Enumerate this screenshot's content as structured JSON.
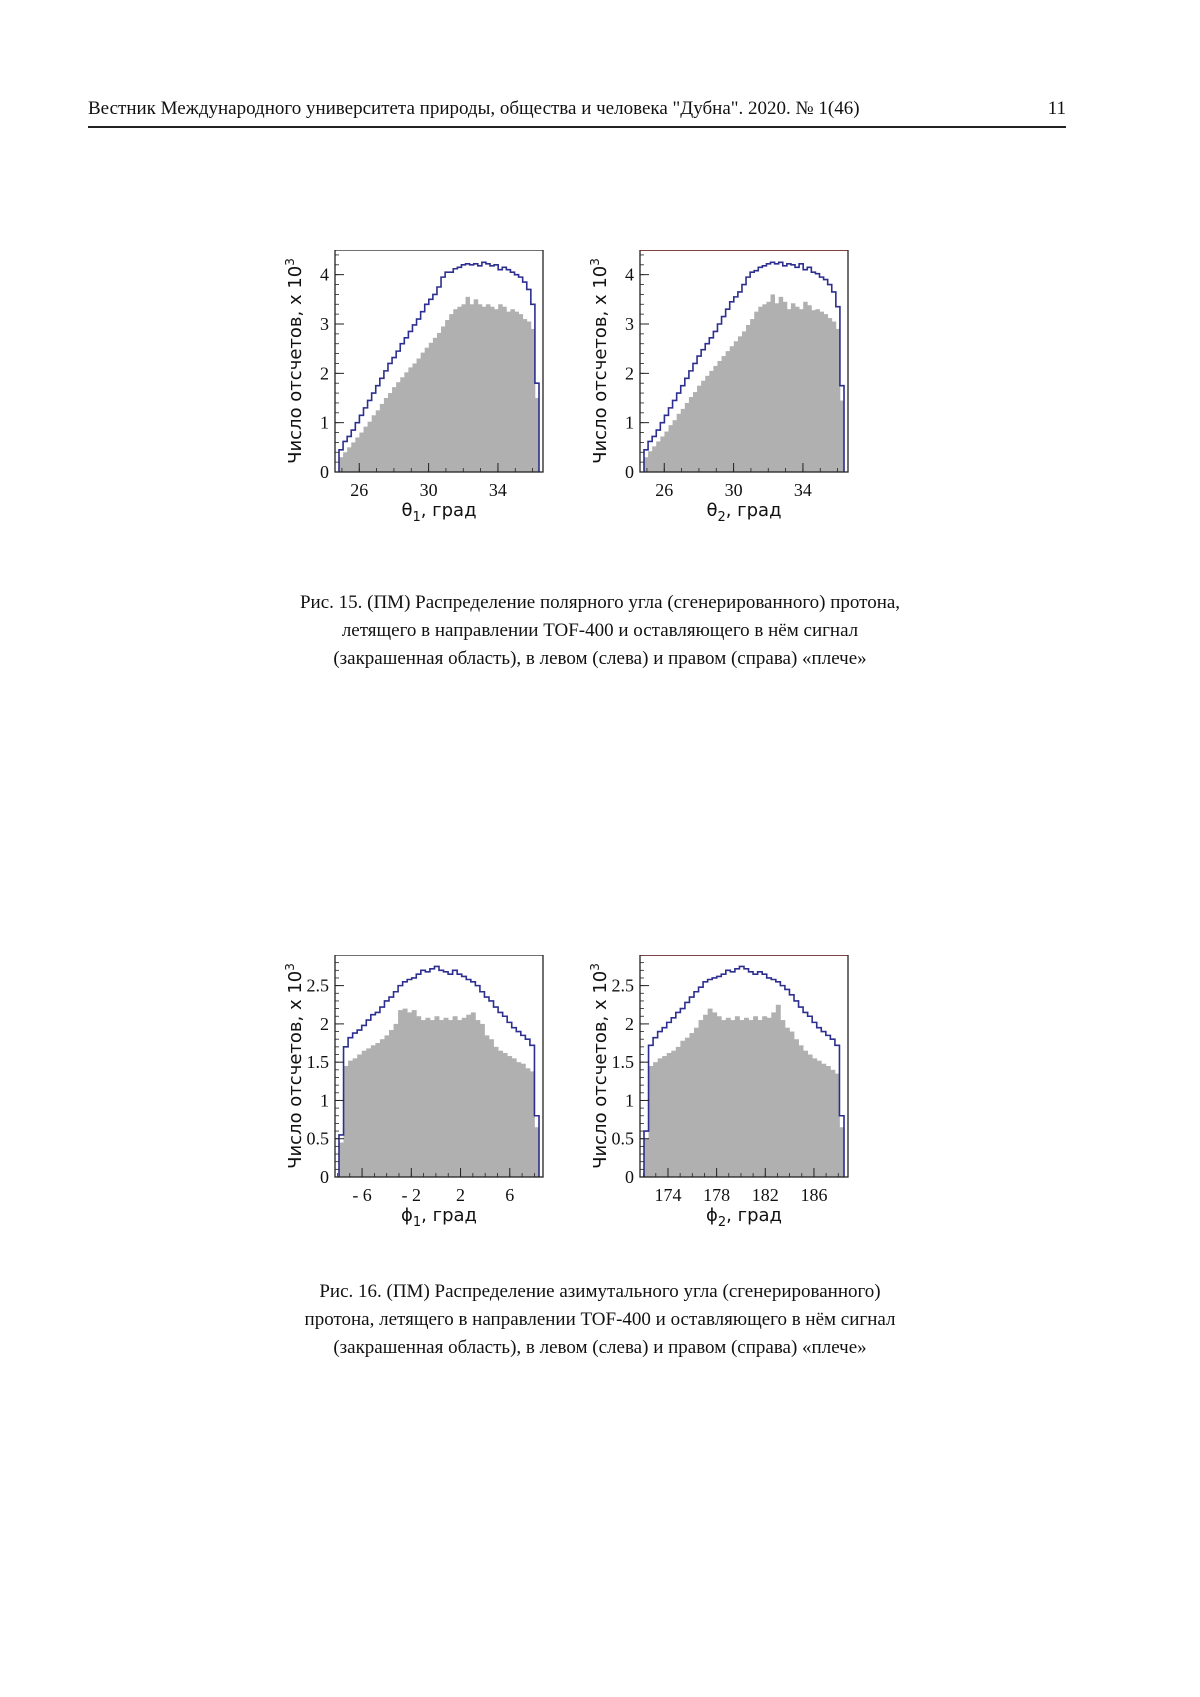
{
  "header": {
    "journal": "Вестник Международного университета природы, общества и человека \"Дубна\". 2020. № 1(46)",
    "page_number": "11"
  },
  "colors": {
    "generated": "#2c2f8f",
    "filled": "#b0b0b0",
    "frame": "#222222",
    "frame_right_top": "#6b1a1a"
  },
  "fig15": {
    "caption_lines": [
      "Рис. 15. (ПМ) Распределение полярного угла (сгенерированного) протона,",
      "летящего в направлении TOF-400 и оставляющего в нём сигнал",
      "(закрашенная область), в левом (слева) и правом (справа) «плече»"
    ]
  },
  "fig16": {
    "caption_lines": [
      "Рис. 16. (ПМ) Распределение азимутального угла (сгенерированного)",
      "протона, летящего в направлении TOF-400 и оставляющего в нём сигнал",
      "(закрашенная область), в левом (слева) и правом (справа) «плече»"
    ]
  },
  "chart_data": [
    {
      "id": "theta1",
      "type": "bar",
      "xlabel_main": "θ",
      "xlabel_sub": "1",
      "xlabel_rest": ", град",
      "ylabel": "Число отсчетов, x 10",
      "ylabel_exp": "3",
      "xlim": [
        24.6,
        36.6
      ],
      "ylim": [
        0,
        4.5
      ],
      "xticks": [
        "26",
        "30",
        "34"
      ],
      "xtick_values": [
        26,
        30,
        34
      ],
      "yticks": [
        "0",
        "1",
        "2",
        "3",
        "4"
      ],
      "ytick_values": [
        0,
        1,
        2,
        3,
        4
      ],
      "generated": [
        0.45,
        0.62,
        0.72,
        0.85,
        1.0,
        1.15,
        1.3,
        1.45,
        1.6,
        1.75,
        1.9,
        2.05,
        2.2,
        2.32,
        2.45,
        2.6,
        2.72,
        2.85,
        2.98,
        3.1,
        3.25,
        3.4,
        3.5,
        3.6,
        3.75,
        3.95,
        4.05,
        4.05,
        4.12,
        4.15,
        4.2,
        4.22,
        4.2,
        4.22,
        4.18,
        4.25,
        4.22,
        4.18,
        4.2,
        4.1,
        4.15,
        4.1,
        4.05,
        4.0,
        3.95,
        3.85,
        3.7,
        3.4,
        1.8
      ],
      "filled": [
        0.3,
        0.4,
        0.5,
        0.6,
        0.7,
        0.8,
        0.92,
        1.02,
        1.15,
        1.25,
        1.38,
        1.5,
        1.6,
        1.72,
        1.82,
        1.92,
        2.02,
        2.12,
        2.2,
        2.3,
        2.42,
        2.52,
        2.62,
        2.72,
        2.82,
        2.95,
        3.08,
        3.2,
        3.3,
        3.35,
        3.4,
        3.55,
        3.4,
        3.5,
        3.4,
        3.35,
        3.4,
        3.35,
        3.3,
        3.4,
        3.35,
        3.25,
        3.3,
        3.25,
        3.2,
        3.1,
        3.05,
        2.9,
        1.5
      ]
    },
    {
      "id": "theta2",
      "type": "bar",
      "xlabel_main": "θ",
      "xlabel_sub": "2",
      "xlabel_rest": ", град",
      "ylabel": "Число отсчетов, x 10",
      "ylabel_exp": "3",
      "xlim": [
        24.6,
        36.6
      ],
      "ylim": [
        0,
        4.5
      ],
      "xticks": [
        "26",
        "30",
        "34"
      ],
      "xtick_values": [
        26,
        30,
        34
      ],
      "yticks": [
        "0",
        "1",
        "2",
        "3",
        "4"
      ],
      "ytick_values": [
        0,
        1,
        2,
        3,
        4
      ],
      "generated": [
        0.45,
        0.62,
        0.72,
        0.85,
        1.0,
        1.15,
        1.3,
        1.45,
        1.6,
        1.75,
        1.9,
        2.05,
        2.2,
        2.35,
        2.48,
        2.6,
        2.72,
        2.85,
        3.0,
        3.15,
        3.3,
        3.45,
        3.55,
        3.65,
        3.8,
        3.95,
        4.05,
        4.08,
        4.15,
        4.18,
        4.22,
        4.25,
        4.22,
        4.25,
        4.18,
        4.22,
        4.2,
        4.15,
        4.22,
        4.1,
        4.15,
        4.05,
        4.02,
        3.95,
        3.9,
        3.8,
        3.65,
        3.35,
        1.75
      ],
      "filled": [
        0.3,
        0.42,
        0.52,
        0.62,
        0.72,
        0.82,
        0.95,
        1.05,
        1.18,
        1.28,
        1.4,
        1.52,
        1.62,
        1.75,
        1.85,
        1.95,
        2.05,
        2.15,
        2.25,
        2.35,
        2.45,
        2.55,
        2.65,
        2.75,
        2.85,
        2.98,
        3.1,
        3.25,
        3.35,
        3.4,
        3.45,
        3.6,
        3.42,
        3.55,
        3.45,
        3.3,
        3.42,
        3.35,
        3.3,
        3.45,
        3.38,
        3.28,
        3.3,
        3.25,
        3.2,
        3.12,
        3.05,
        2.9,
        1.45
      ]
    },
    {
      "id": "phi1",
      "type": "bar",
      "xlabel_main": "ϕ",
      "xlabel_sub": "1",
      "xlabel_rest": ", град",
      "ylabel": "Число отсчетов, x 10",
      "ylabel_exp": "3",
      "xlim": [
        -8.2,
        8.7
      ],
      "ylim": [
        0,
        2.9
      ],
      "xticks": [
        "- 6",
        "- 2",
        "2",
        "6"
      ],
      "xtick_values": [
        -6,
        -2,
        2,
        6
      ],
      "yticks": [
        "0",
        "0.5",
        "1",
        "1.5",
        "2",
        "2.5"
      ],
      "ytick_values": [
        0,
        0.5,
        1,
        1.5,
        2,
        2.5
      ],
      "generated": [
        0.55,
        1.7,
        1.82,
        1.88,
        1.92,
        1.98,
        2.05,
        2.12,
        2.15,
        2.22,
        2.3,
        2.35,
        2.42,
        2.5,
        2.55,
        2.58,
        2.6,
        2.65,
        2.7,
        2.68,
        2.72,
        2.75,
        2.7,
        2.68,
        2.65,
        2.7,
        2.65,
        2.62,
        2.58,
        2.55,
        2.5,
        2.42,
        2.35,
        2.3,
        2.22,
        2.15,
        2.1,
        2.02,
        1.95,
        1.9,
        1.85,
        1.8,
        1.72,
        0.8
      ],
      "filled": [
        0.45,
        1.45,
        1.52,
        1.55,
        1.6,
        1.65,
        1.68,
        1.72,
        1.75,
        1.8,
        1.85,
        1.92,
        2.0,
        2.18,
        2.2,
        2.15,
        2.18,
        2.1,
        2.05,
        2.08,
        2.05,
        2.1,
        2.05,
        2.08,
        2.05,
        2.1,
        2.05,
        2.08,
        2.12,
        2.15,
        2.05,
        2.0,
        1.85,
        1.8,
        1.7,
        1.65,
        1.62,
        1.58,
        1.55,
        1.5,
        1.48,
        1.42,
        1.38,
        0.65
      ]
    },
    {
      "id": "phi2",
      "type": "bar",
      "xlabel_main": "ϕ",
      "xlabel_sub": "2",
      "xlabel_rest": ", град",
      "ylabel": "Число отсчетов, x 10",
      "ylabel_exp": "3",
      "xlim": [
        171.7,
        188.8
      ],
      "ylim": [
        0,
        2.9
      ],
      "xticks": [
        "174",
        "178",
        "182",
        "186"
      ],
      "xtick_values": [
        174,
        178,
        182,
        186
      ],
      "yticks": [
        "0",
        "0.5",
        "1",
        "1.5",
        "2",
        "2.5"
      ],
      "ytick_values": [
        0,
        0.5,
        1,
        1.5,
        2,
        2.5
      ],
      "generated": [
        0.6,
        1.72,
        1.82,
        1.9,
        1.95,
        2.02,
        2.08,
        2.15,
        2.2,
        2.28,
        2.35,
        2.42,
        2.48,
        2.55,
        2.58,
        2.6,
        2.62,
        2.65,
        2.7,
        2.68,
        2.72,
        2.75,
        2.72,
        2.68,
        2.65,
        2.68,
        2.65,
        2.6,
        2.58,
        2.55,
        2.5,
        2.45,
        2.38,
        2.3,
        2.22,
        2.15,
        2.1,
        2.02,
        1.95,
        1.9,
        1.85,
        1.8,
        1.72,
        0.8
      ],
      "filled": [
        0.5,
        1.45,
        1.5,
        1.55,
        1.58,
        1.62,
        1.65,
        1.7,
        1.78,
        1.82,
        1.88,
        1.95,
        2.05,
        2.12,
        2.2,
        2.15,
        2.1,
        2.05,
        2.08,
        2.05,
        2.1,
        2.05,
        2.08,
        2.05,
        2.1,
        2.05,
        2.1,
        2.08,
        2.15,
        2.25,
        2.05,
        1.95,
        1.9,
        1.8,
        1.72,
        1.65,
        1.6,
        1.55,
        1.52,
        1.48,
        1.45,
        1.4,
        1.35,
        0.65
      ]
    }
  ]
}
